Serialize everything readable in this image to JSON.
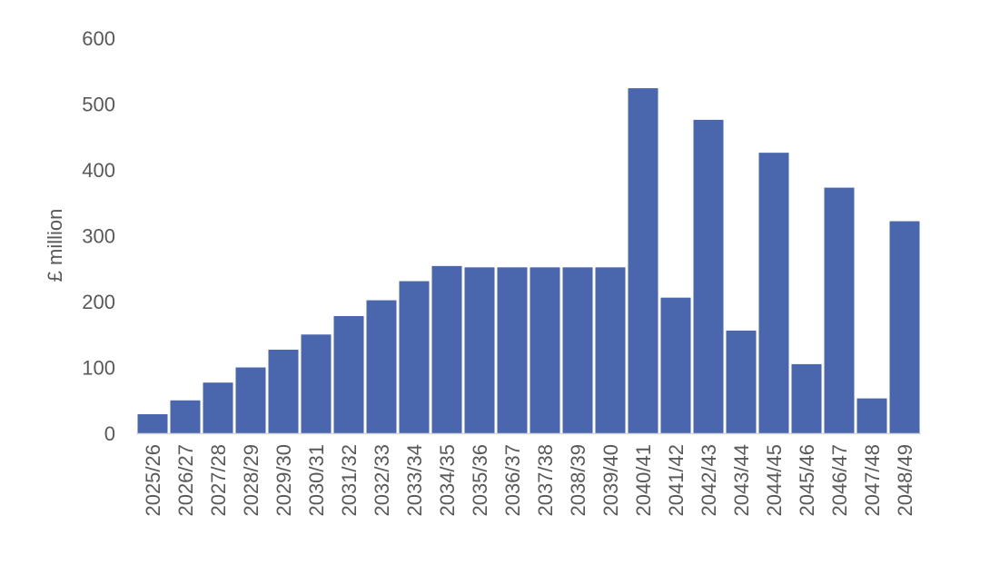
{
  "chart_data": {
    "type": "bar",
    "title": "",
    "xlabel": "",
    "ylabel": "£ million",
    "ylim": [
      0,
      600
    ],
    "yticks": [
      0,
      100,
      200,
      300,
      400,
      500,
      600
    ],
    "grid": false,
    "legend": "none",
    "bar_color": "#4A66AC",
    "categories": [
      "2025/26",
      "2026/27",
      "2027/28",
      "2028/29",
      "2029/30",
      "2030/31",
      "2031/32",
      "2032/33",
      "2033/34",
      "2034/35",
      "2035/36",
      "2036/37",
      "2037/38",
      "2038/39",
      "2039/40",
      "2040/41",
      "2041/42",
      "2042/43",
      "2043/44",
      "2044/45",
      "2045/46",
      "2046/47",
      "2047/48",
      "2048/49"
    ],
    "values": [
      29,
      50,
      77,
      100,
      127,
      150,
      178,
      202,
      231,
      254,
      252,
      252,
      252,
      252,
      252,
      524,
      206,
      476,
      156,
      426,
      105,
      373,
      53,
      322
    ]
  }
}
